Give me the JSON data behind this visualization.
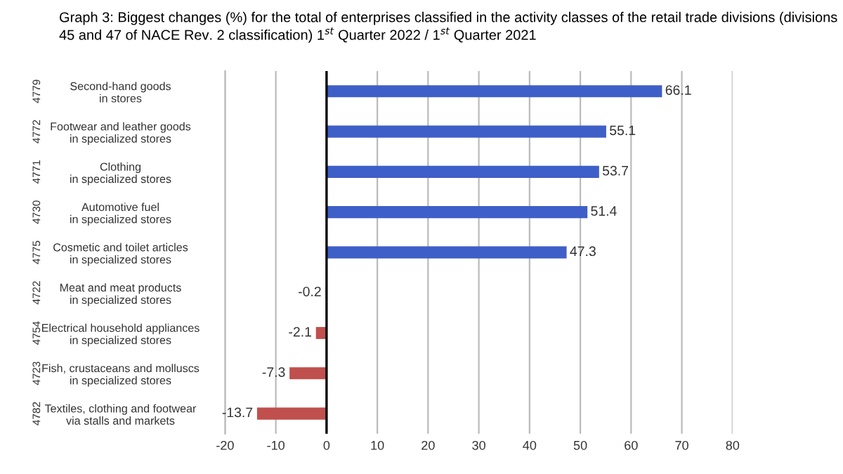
{
  "chart_data": {
    "type": "bar",
    "orientation": "horizontal",
    "title": "Graph 3: Biggest changes (%) for the total of enterprises classified in the activity classes of the retail trade divisions (divisions 45 and 47 of NACE Rev. 2 classification) 1$^{st}$ Quarter 2022 / 1$^{st}$ Quarter 2021",
    "categories": [
      "Second-hand goods\nin stores",
      "Footwear and leather goods\nin specialized stores",
      "Clothing\nin specialized stores",
      "Automotive fuel\nin specialized stores",
      "Cosmetic and toilet articles\nin specialized stores",
      "Meat and meat products\nin specialized stores",
      "Electrical household appliances\nin specialized stores",
      "Fish, crustaceans and molluscs\nin specialized stores",
      "Textiles, clothing and footwear\nvia stalls and markets"
    ],
    "values": [
      66.1,
      55.1,
      53.7,
      51.4,
      47.3,
      -0.2,
      -2.1,
      -7.3,
      -13.7
    ],
    "colors": [
      "#3f5fc8",
      "#3f5fc8",
      "#3f5fc8",
      "#3f5fc8",
      "#3f5fc8",
      "#c0504d",
      "#c0504d",
      "#c0504d",
      "#c0504d"
    ],
    "data_labels": true,
    "xlim": [
      -20,
      80
    ],
    "xticks": [
      -20,
      -10,
      0,
      10,
      20,
      30,
      40,
      50,
      60,
      70,
      80
    ],
    "grid": "x",
    "legend": false,
    "annotations": [
      "4779",
      "4772",
      "4771",
      "4730",
      "4775",
      "4722",
      "4754",
      "4723",
      "4782"
    ]
  }
}
